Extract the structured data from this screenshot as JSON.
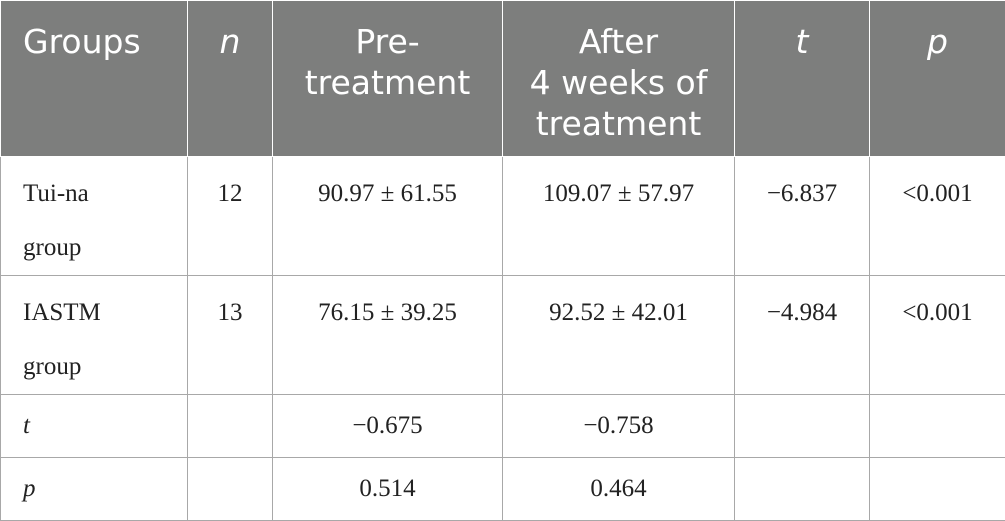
{
  "table": {
    "headers": {
      "groups": "Groups",
      "n": "n",
      "pre_line1": "Pre-",
      "pre_line2": "treatment",
      "after_line1": "After",
      "after_line2": "4 weeks of",
      "after_line3": "treatment",
      "t": "t",
      "p": "p"
    },
    "rows": [
      {
        "group_line1": "Tui-na",
        "group_line2": "group",
        "n": "12",
        "pre": "90.97 ± 61.55",
        "after": "109.07 ± 57.97",
        "t": "−6.837",
        "p": "<0.001"
      },
      {
        "group_line1": "IASTM",
        "group_line2": "group",
        "n": "13",
        "pre": "76.15 ± 39.25",
        "after": "92.52 ± 42.01",
        "t": "−4.984",
        "p": "<0.001"
      },
      {
        "group_line1": "t",
        "n": "",
        "pre": "−0.675",
        "after": "−0.758",
        "t": "",
        "p": ""
      },
      {
        "group_line1": "p",
        "n": "",
        "pre": "0.514",
        "after": "0.464",
        "t": "",
        "p": ""
      }
    ]
  },
  "colors": {
    "header_bg": "#7d7e7d",
    "header_text": "#ffffff",
    "border": "#a8a8a8",
    "body_text": "#222222"
  }
}
